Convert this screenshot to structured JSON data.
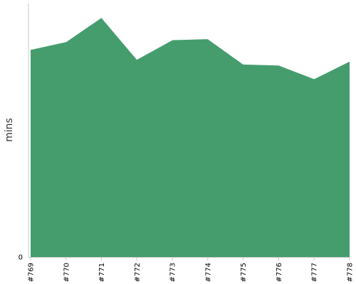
{
  "chart_data": {
    "type": "area",
    "ylabel": "mins",
    "ylim": [
      0,
      26
    ],
    "yticks": [
      0
    ],
    "categories": [
      "#769",
      "#770",
      "#771",
      "#772",
      "#773",
      "#774",
      "#775",
      "#776",
      "#777",
      "#778"
    ],
    "series": [
      {
        "values": [
          21.3,
          22.1,
          24.6,
          20.3,
          22.3,
          22.4,
          19.8,
          19.7,
          18.3,
          20.1
        ]
      }
    ],
    "colors": {
      "fill": "#459d6d",
      "stroke": "#ffffff",
      "axis": "#c8c8c8"
    },
    "grid": false
  }
}
